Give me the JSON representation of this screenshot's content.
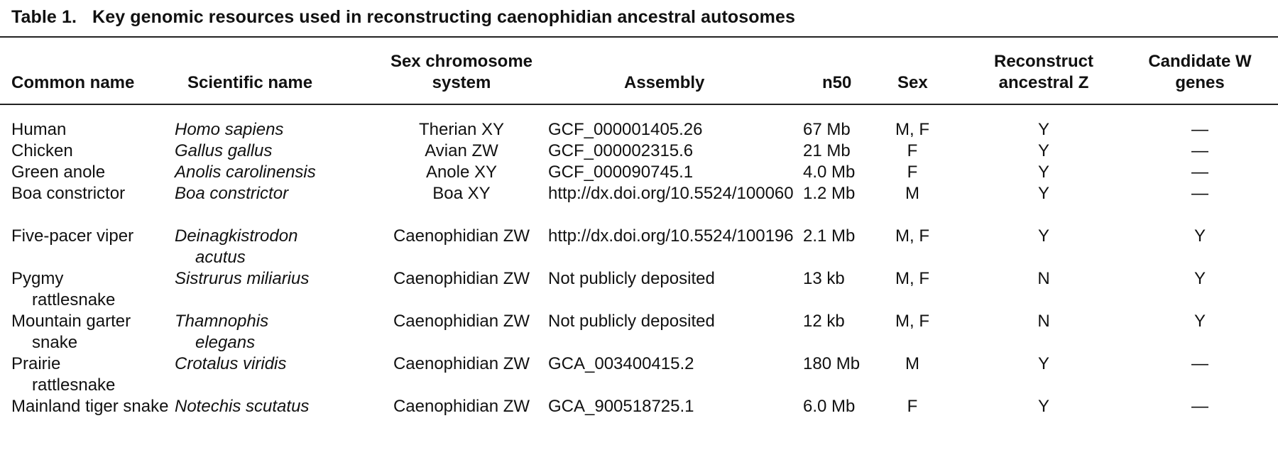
{
  "caption": {
    "label": "Table 1.",
    "text": "Key genomic resources used in reconstructing caenophidian ancestral autosomes"
  },
  "headers": {
    "common_name": "Common name",
    "scientific_name": "Scientific name",
    "sex_chromosome_system_line1": "Sex chromosome",
    "sex_chromosome_system_line2": "system",
    "assembly": "Assembly",
    "n50": "n50",
    "sex": "Sex",
    "reconstruct_line1": "Reconstruct",
    "reconstruct_line2": "ancestral Z",
    "candidate_line1": "Candidate W",
    "candidate_line2": "genes"
  },
  "rows": [
    {
      "common": "Human",
      "scientific": "Homo sapiens",
      "system": "Therian XY",
      "assembly": "GCF_000001405.26",
      "n50": "67 Mb",
      "sex": "M, F",
      "reconstruct": "Y",
      "candidate": "—"
    },
    {
      "common": "Chicken",
      "scientific": "Gallus gallus",
      "system": "Avian ZW",
      "assembly": "GCF_000002315.6",
      "n50": "21 Mb",
      "sex": "F",
      "reconstruct": "Y",
      "candidate": "—"
    },
    {
      "common": "Green anole",
      "scientific": "Anolis carolinensis",
      "system": "Anole XY",
      "assembly": "GCF_000090745.1",
      "n50": "4.0 Mb",
      "sex": "F",
      "reconstruct": "Y",
      "candidate": "—"
    },
    {
      "common": "Boa constrictor",
      "scientific": "Boa constrictor",
      "system": "Boa XY",
      "assembly": "http://dx.doi.org/10.5524/100060",
      "n50": "1.2 Mb",
      "sex": "M",
      "reconstruct": "Y",
      "candidate": "—"
    },
    {
      "common": "Five-pacer viper",
      "scientific": "Deinagkistrodon acutus",
      "system": "Caenophidian ZW",
      "assembly": "http://dx.doi.org/10.5524/100196",
      "n50": "2.1 Mb",
      "sex": "M, F",
      "reconstruct": "Y",
      "candidate": "Y"
    },
    {
      "common": "Pygmy rattlesnake",
      "scientific": "Sistrurus miliarius",
      "system": "Caenophidian ZW",
      "assembly": "Not publicly deposited",
      "n50": "13 kb",
      "sex": "M, F",
      "reconstruct": "N",
      "candidate": "Y"
    },
    {
      "common": "Mountain garter snake",
      "scientific": "Thamnophis elegans",
      "system": "Caenophidian ZW",
      "assembly": "Not publicly deposited",
      "n50": "12 kb",
      "sex": "M, F",
      "reconstruct": "N",
      "candidate": "Y"
    },
    {
      "common": "Prairie rattlesnake",
      "scientific": "Crotalus viridis",
      "system": "Caenophidian ZW",
      "assembly": "GCA_003400415.2",
      "n50": "180 Mb",
      "sex": "M",
      "reconstruct": "Y",
      "candidate": "—"
    },
    {
      "common": "Mainland tiger snake",
      "scientific": "Notechis scutatus",
      "system": "Caenophidian ZW",
      "assembly": "GCA_900518725.1",
      "n50": "6.0 Mb",
      "sex": "F",
      "reconstruct": "Y",
      "candidate": "—"
    }
  ]
}
